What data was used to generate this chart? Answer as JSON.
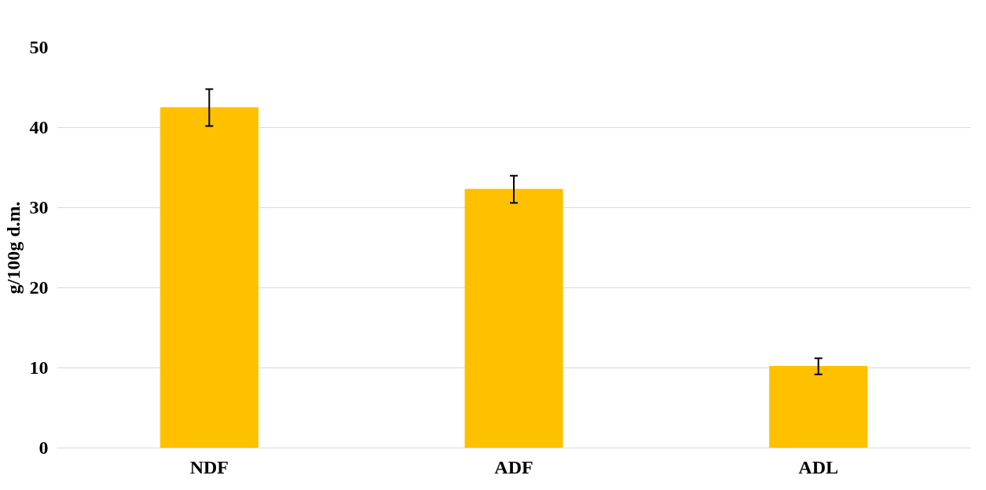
{
  "chart_data": {
    "type": "bar",
    "ylabel": "g/100g d.m.",
    "categories": [
      "NDF",
      "ADF",
      "ADL"
    ],
    "values": [
      42.5,
      32.3,
      10.2
    ],
    "errors": [
      2.3,
      1.7,
      1.0
    ],
    "color": "#ffc000",
    "ylim": [
      0,
      50
    ],
    "yticks": [
      0,
      10,
      20,
      30,
      40,
      50
    ],
    "grid": "y"
  }
}
